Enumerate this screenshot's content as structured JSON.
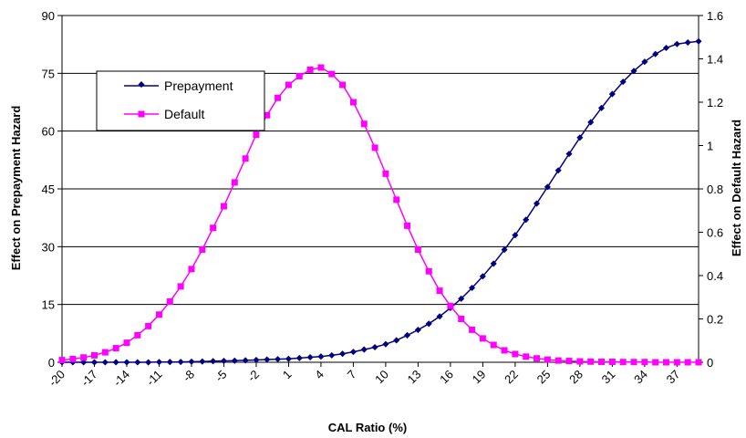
{
  "chart_data": {
    "type": "line",
    "title": "",
    "xlabel": "CAL Ratio (%)",
    "ylabel_left": "Effect on Prepayment Hazard",
    "ylabel_right": "Effect on Default Hazard",
    "x_tick_labels": [
      "-20",
      "-17",
      "-14",
      "-11",
      "-8",
      "-5",
      "-2",
      "1",
      "4",
      "7",
      "10",
      "13",
      "16",
      "19",
      "22",
      "25",
      "28",
      "31",
      "34",
      "37"
    ],
    "y_left_ticks": [
      "0",
      "15",
      "30",
      "45",
      "60",
      "75",
      "90"
    ],
    "y_right_ticks": [
      "0",
      "0.2",
      "0.4",
      "0.6",
      "0.8",
      "1",
      "1.2",
      "1.4",
      "1.6"
    ],
    "ylim_left": [
      0,
      90
    ],
    "ylim_right": [
      0,
      1.6
    ],
    "xlim": [
      -20,
      39
    ],
    "grid": "horizontal",
    "legend_position": "top-left",
    "x": [
      -20,
      -19,
      -18,
      -17,
      -16,
      -15,
      -14,
      -13,
      -12,
      -11,
      -10,
      -9,
      -8,
      -7,
      -6,
      -5,
      -4,
      -3,
      -2,
      -1,
      0,
      1,
      2,
      3,
      4,
      5,
      6,
      7,
      8,
      9,
      10,
      11,
      12,
      13,
      14,
      15,
      16,
      17,
      18,
      19,
      20,
      21,
      22,
      23,
      24,
      25,
      26,
      27,
      28,
      29,
      30,
      31,
      32,
      33,
      34,
      35,
      36,
      37,
      38,
      39
    ],
    "series": [
      {
        "name": "Prepayment",
        "axis": "left",
        "color": "#000080",
        "marker": "diamond",
        "values": [
          0.0,
          0.0,
          0.0,
          0.0,
          0.0,
          0.0,
          0.0,
          0.0,
          0.0,
          0.05,
          0.07,
          0.1,
          0.15,
          0.2,
          0.28,
          0.35,
          0.4,
          0.5,
          0.6,
          0.7,
          0.8,
          0.9,
          1.1,
          1.3,
          1.5,
          1.8,
          2.2,
          2.7,
          3.3,
          3.9,
          4.7,
          5.7,
          7.0,
          8.4,
          10.0,
          11.9,
          14.1,
          16.5,
          19.3,
          22.3,
          25.6,
          29.2,
          33.0,
          37.0,
          41.2,
          45.5,
          49.8,
          54.1,
          58.3,
          62.3,
          66.0,
          69.6,
          72.8,
          75.6,
          78.0,
          80.0,
          81.6,
          82.6,
          83.0,
          83.3
        ]
      },
      {
        "name": "Default",
        "axis": "right",
        "color": "#ff00ff",
        "marker": "square",
        "values": [
          0.01,
          0.015,
          0.022,
          0.032,
          0.046,
          0.065,
          0.09,
          0.125,
          0.167,
          0.22,
          0.28,
          0.35,
          0.43,
          0.52,
          0.62,
          0.72,
          0.83,
          0.94,
          1.05,
          1.14,
          1.22,
          1.28,
          1.32,
          1.35,
          1.36,
          1.33,
          1.28,
          1.2,
          1.1,
          0.99,
          0.87,
          0.75,
          0.63,
          0.52,
          0.42,
          0.33,
          0.26,
          0.2,
          0.15,
          0.11,
          0.08,
          0.055,
          0.038,
          0.026,
          0.018,
          0.012,
          0.008,
          0.006,
          0.004,
          0.003,
          0.002,
          0.002,
          0.001,
          0.001,
          0.001,
          0.0,
          0.0,
          0.0,
          0.0,
          0.0
        ]
      }
    ]
  }
}
